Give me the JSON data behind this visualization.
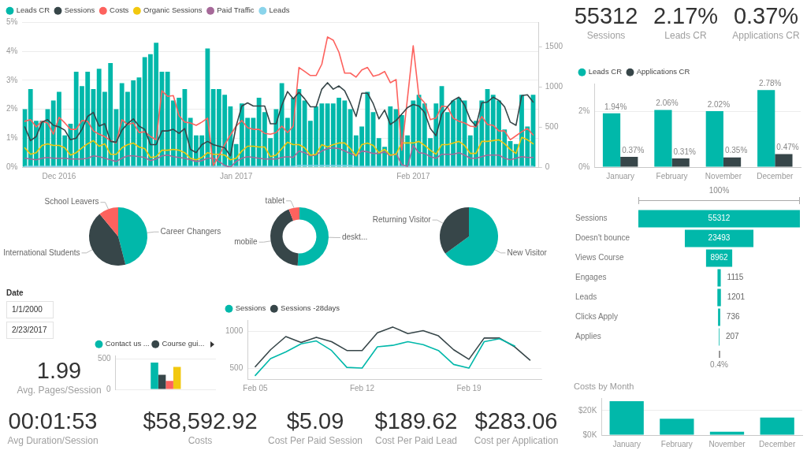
{
  "chart_data": [
    {
      "type": "bar",
      "x": [
        "2016-11-25",
        "2016-11-26",
        "2016-11-27",
        "2016-11-28",
        "2016-11-29",
        "2016-11-30",
        "2016-12-01",
        "2016-12-02",
        "2016-12-03",
        "2016-12-04",
        "2016-12-05",
        "2016-12-06",
        "2016-12-07",
        "2016-12-08",
        "2016-12-09",
        "2016-12-10",
        "2016-12-11",
        "2016-12-12",
        "2016-12-13",
        "2016-12-14",
        "2016-12-15",
        "2016-12-16",
        "2016-12-17",
        "2016-12-18",
        "2016-12-19",
        "2016-12-20",
        "2016-12-21",
        "2016-12-22",
        "2016-12-23",
        "2016-12-24",
        "2016-12-25",
        "2016-12-26",
        "2016-12-27",
        "2016-12-28",
        "2016-12-29",
        "2016-12-30",
        "2016-12-31",
        "2017-01-01",
        "2017-01-02",
        "2017-01-03",
        "2017-01-04",
        "2017-01-05",
        "2017-01-06",
        "2017-01-07",
        "2017-01-08",
        "2017-01-09",
        "2017-01-10",
        "2017-01-11",
        "2017-01-12",
        "2017-01-13",
        "2017-01-14",
        "2017-01-15",
        "2017-01-16",
        "2017-01-17",
        "2017-01-18",
        "2017-01-19",
        "2017-01-20",
        "2017-01-21",
        "2017-01-22",
        "2017-01-23",
        "2017-01-24",
        "2017-01-25",
        "2017-01-26",
        "2017-01-27",
        "2017-01-28",
        "2017-01-29",
        "2017-01-30",
        "2017-01-31",
        "2017-02-01",
        "2017-02-02",
        "2017-02-03",
        "2017-02-04",
        "2017-02-05",
        "2017-02-06",
        "2017-02-07",
        "2017-02-08",
        "2017-02-09",
        "2017-02-10",
        "2017-02-11",
        "2017-02-12",
        "2017-02-13",
        "2017-02-14",
        "2017-02-15",
        "2017-02-16",
        "2017-02-17",
        "2017-02-18",
        "2017-02-19",
        "2017-02-20",
        "2017-02-21",
        "2017-02-22"
      ],
      "xlim": [
        "2016-11-24T14:00",
        "2017-02-23"
      ],
      "xticks": [
        {
          "value": "2016-12-01",
          "label": "Dec 2016"
        },
        {
          "value": "2017-01-01",
          "label": "Jan 2017"
        },
        {
          "value": "2017-02-01",
          "label": "Feb 2017"
        }
      ],
      "series": [
        {
          "name": "Leads CR",
          "color": "#01b8aa",
          "values": [
            2.0,
            2.7,
            1.6,
            1.6,
            2.0,
            2.3,
            2.6,
            1.1,
            1.5,
            3.3,
            2.8,
            3.3,
            2.7,
            3.4,
            2.6,
            3.6,
            2.0,
            2.9,
            2.6,
            3.0,
            3.1,
            3.8,
            3.9,
            4.3,
            3.3,
            3.3,
            2.3,
            2.4,
            2.7,
            1.7,
            1.1,
            1.1,
            4.1,
            2.7,
            2.7,
            2.5,
            2.1,
            0.8,
            2.2,
            1.7,
            1.7,
            2.4,
            1.9,
            1.0,
            2.0,
            2.9,
            1.7,
            2.4,
            2.7,
            2.3,
            1.6,
            2.1,
            2.2,
            2.2,
            2.2,
            2.4,
            2.3,
            2.0,
            1.1,
            1.4,
            2.6,
            1.9,
            1.0,
            0.7,
            2.1,
            2.0,
            1.8,
            1.1,
            2.3,
            2.5,
            2.2,
            1.0,
            2.2,
            2.8,
            1.9,
            2.3,
            2.4,
            2.3,
            1.1,
            1.6,
            2.3,
            2.7,
            2.5,
            2.3,
            1.3,
            0.9,
            0.8,
            2.5,
            1.4,
            2.5
          ]
        },
        {
          "name": "Sessions",
          "type": "line",
          "axis": "y2",
          "color": "#374649",
          "values": [
            500,
            330,
            380,
            560,
            590,
            520,
            500,
            460,
            340,
            360,
            470,
            630,
            680,
            510,
            540,
            320,
            310,
            460,
            540,
            600,
            510,
            470,
            280,
            280,
            450,
            450,
            470,
            420,
            480,
            220,
            180,
            280,
            320,
            280,
            260,
            240,
            140,
            510,
            760,
            800,
            760,
            760,
            760,
            540,
            540,
            770,
            940,
            850,
            930,
            850,
            750,
            750,
            970,
            1050,
            970,
            1010,
            950,
            800,
            630,
            920,
            920,
            790,
            600,
            710,
            530,
            580,
            660,
            740,
            780,
            760,
            680,
            480,
            390,
            660,
            750,
            830,
            870,
            770,
            590,
            510,
            800,
            810,
            870,
            830,
            750,
            560,
            520,
            890,
            900,
            810
          ]
        },
        {
          "name": "Costs",
          "type": "line",
          "axis": "y2",
          "color": "#fd625e",
          "values": [
            570,
            590,
            500,
            570,
            550,
            410,
            620,
            550,
            470,
            470,
            580,
            570,
            450,
            410,
            380,
            330,
            300,
            590,
            530,
            550,
            430,
            440,
            380,
            340,
            950,
            880,
            890,
            640,
            560,
            550,
            520,
            560,
            610,
            20,
            140,
            280,
            400,
            510,
            580,
            490,
            470,
            470,
            420,
            410,
            430,
            510,
            430,
            510,
            1240,
            1190,
            1140,
            1140,
            1280,
            1620,
            1580,
            1430,
            1170,
            1170,
            1120,
            1210,
            1240,
            1130,
            1150,
            1190,
            1050,
            1090,
            210,
            860,
            1510,
            880,
            800,
            590,
            610,
            760,
            750,
            610,
            570,
            550,
            510,
            500,
            630,
            530,
            520,
            450,
            450,
            340,
            390,
            440,
            480,
            400
          ]
        },
        {
          "name": "Organic Sessions",
          "type": "line",
          "axis": "y2",
          "color": "#f2c80f",
          "values": [
            240,
            160,
            180,
            270,
            290,
            270,
            270,
            240,
            150,
            180,
            240,
            290,
            330,
            260,
            290,
            160,
            160,
            240,
            280,
            300,
            250,
            230,
            120,
            130,
            210,
            210,
            220,
            210,
            180,
            110,
            90,
            120,
            180,
            160,
            160,
            150,
            90,
            110,
            200,
            260,
            260,
            250,
            250,
            130,
            150,
            230,
            310,
            280,
            280,
            240,
            150,
            160,
            280,
            250,
            280,
            300,
            300,
            230,
            140,
            280,
            300,
            270,
            180,
            220,
            150,
            160,
            300,
            300,
            300,
            320,
            270,
            210,
            160,
            280,
            280,
            300,
            320,
            270,
            170,
            170,
            320,
            320,
            330,
            340,
            290,
            220,
            170,
            370,
            340,
            290
          ]
        },
        {
          "name": "Paid Traffic",
          "type": "line",
          "axis": "y2",
          "color": "#a66999",
          "values": [
            110,
            100,
            90,
            110,
            120,
            110,
            110,
            110,
            100,
            100,
            100,
            110,
            140,
            130,
            110,
            90,
            70,
            110,
            140,
            140,
            130,
            120,
            80,
            100,
            140,
            150,
            130,
            120,
            110,
            90,
            70,
            80,
            110,
            110,
            70,
            20,
            0,
            70,
            110,
            130,
            120,
            110,
            100,
            100,
            100,
            120,
            130,
            120,
            200,
            180,
            140,
            150,
            200,
            230,
            240,
            230,
            200,
            170,
            140,
            200,
            190,
            170,
            170,
            190,
            140,
            170,
            30,
            10,
            270,
            180,
            170,
            130,
            110,
            160,
            160,
            160,
            180,
            150,
            110,
            110,
            130,
            150,
            150,
            150,
            110,
            90,
            110,
            130,
            120,
            120
          ]
        },
        {
          "name": "Leads",
          "type": "line",
          "axis": "y2",
          "color": "#8ad4eb",
          "values": [
            10,
            10,
            10,
            10,
            10,
            10,
            10,
            10,
            10,
            10,
            10,
            10,
            10,
            10,
            10,
            10,
            10,
            10,
            10,
            10,
            10,
            10,
            10,
            10,
            10,
            10,
            10,
            10,
            10,
            10,
            10,
            10,
            10,
            10,
            10,
            10,
            10,
            10,
            10,
            10,
            10,
            10,
            10,
            10,
            10,
            10,
            10,
            10,
            20,
            20,
            20,
            20,
            20,
            20,
            20,
            20,
            20,
            20,
            10,
            10,
            10,
            10,
            10,
            10,
            10,
            10,
            10,
            10,
            10,
            10,
            10,
            10,
            10,
            10,
            10,
            10,
            10,
            10,
            10,
            10,
            10,
            10,
            10,
            10,
            10,
            10,
            10,
            10,
            10,
            10
          ]
        }
      ],
      "ylim": [
        0,
        5
      ],
      "yticks": [
        {
          "value": 0,
          "label": "0%"
        },
        {
          "value": 1,
          "label": "1%"
        },
        {
          "value": 2,
          "label": "2%"
        },
        {
          "value": 3,
          "label": "3%"
        },
        {
          "value": 4,
          "label": "4%"
        },
        {
          "value": 5,
          "label": "5%"
        }
      ],
      "y2lim": [
        0,
        1800
      ],
      "y2ticks": [
        0,
        500,
        1000,
        1500
      ],
      "grid": "y",
      "legend": "top left",
      "marker": "none"
    },
    {
      "type": "other",
      "annotations": [
        "55312",
        "Sessions",
        "2.17%",
        "Leads CR",
        "0.37%",
        "Applications CR"
      ]
    },
    {
      "type": "bar",
      "categories": [
        "January",
        "February",
        "November",
        "December"
      ],
      "series": [
        {
          "name": "Leads CR",
          "color": "#01b8aa",
          "values": [
            1.94,
            2.06,
            2.02,
            2.78
          ],
          "value_labels": [
            "1.94%",
            "2.06%",
            "2.02%",
            "2.78%"
          ]
        },
        {
          "name": "Applications CR",
          "color": "#374649",
          "values": [
            0.37,
            0.31,
            0.35,
            0.47
          ],
          "value_labels": [
            "0.37%",
            "0.31%",
            "0.35%",
            "0.47%"
          ]
        }
      ],
      "ylim": [
        0,
        3
      ],
      "yticks": [
        {
          "value": 0,
          "label": "0%"
        },
        {
          "value": 2,
          "label": "2%"
        }
      ],
      "grid": "y",
      "legend": "top left"
    },
    {
      "type": "pie",
      "categories": [
        "Career Changers",
        "International Students",
        "School Leavers"
      ],
      "values": [
        46,
        43,
        11
      ],
      "colors": [
        "#01b8aa",
        "#374649",
        "#fd625e"
      ]
    },
    {
      "type": "donut",
      "categories": [
        "deskt...",
        "mobile",
        "tablet"
      ],
      "values": [
        51,
        43,
        6
      ],
      "colors": [
        "#01b8aa",
        "#374649",
        "#fd625e"
      ]
    },
    {
      "type": "pie",
      "categories": [
        "New Visitor",
        "Returning Visitor"
      ],
      "values": [
        65,
        35
      ],
      "colors": [
        "#01b8aa",
        "#374649"
      ]
    },
    {
      "type": "other",
      "categories": [
        "Sessions",
        "Doesn't bounce",
        "Views Course",
        "Engages",
        "Leads",
        "Clicks Apply",
        "Applies"
      ],
      "values": [
        55312,
        23493,
        8962,
        1115,
        1201,
        736,
        207
      ],
      "color": "#01b8aa",
      "data_labels": true,
      "annotations": [
        "100%",
        "0.4%"
      ]
    },
    {
      "type": "other",
      "title": "Date",
      "annotations": [
        "1/1/2000",
        "2/23/2017"
      ]
    },
    {
      "type": "bar",
      "categories": [
        null
      ],
      "series": [
        {
          "name": "Contact us ...",
          "color": "#01b8aa",
          "values": [
            440
          ]
        },
        {
          "name": "Course gui...",
          "color": "#374649",
          "values": [
            240
          ]
        },
        {
          "color": "#fd625e",
          "values": [
            140
          ]
        },
        {
          "color": "#f2c80f",
          "values": [
            370
          ]
        }
      ],
      "ylim": [
        0,
        550
      ],
      "yticks": [
        0,
        500
      ],
      "grid": "y",
      "legend": "top left"
    },
    {
      "type": "line",
      "x": [
        "2017-02-05",
        "2017-02-06",
        "2017-02-07",
        "2017-02-08",
        "2017-02-09",
        "2017-02-10",
        "2017-02-11",
        "2017-02-12",
        "2017-02-13",
        "2017-02-14",
        "2017-02-15",
        "2017-02-16",
        "2017-02-17",
        "2017-02-18",
        "2017-02-19",
        "2017-02-20",
        "2017-02-21",
        "2017-02-22",
        "2017-02-23"
      ],
      "xlim": [
        "2017-02-04T12:00",
        "2017-02-23T18:00"
      ],
      "xticks": [
        {
          "value": "2017-02-05",
          "label": "Feb 05"
        },
        {
          "value": "2017-02-12",
          "label": "Feb 12"
        },
        {
          "value": "2017-02-19",
          "label": "Feb 19"
        }
      ],
      "series": [
        {
          "name": "Sessions",
          "color": "#01b8aa",
          "values": [
            400,
            630,
            720,
            830,
            870,
            740,
            510,
            500,
            790,
            810,
            860,
            820,
            740,
            550,
            500,
            860,
            900,
            800,
            null
          ]
        },
        {
          "name": "Sessions -28days",
          "color": "#374649",
          "values": [
            520,
            750,
            930,
            850,
            920,
            860,
            740,
            740,
            980,
            1060,
            970,
            1010,
            940,
            750,
            620,
            910,
            910,
            790,
            610
          ]
        }
      ],
      "ylim": [
        350,
        1150
      ],
      "yticks": [
        500,
        1000
      ],
      "grid": "y",
      "legend": "top left",
      "marker": "none"
    },
    {
      "type": "other",
      "annotations": [
        "1.99",
        "Avg. Pages/Session"
      ]
    },
    {
      "type": "other",
      "annotations": [
        "00:01:53",
        "Avg Duration/Session",
        "$58,592.92",
        "Costs",
        "$5.09",
        "Cost Per Paid Session",
        "$189.62",
        "Cost Per Paid Lead",
        "$283.06",
        "Cost per Application"
      ]
    },
    {
      "type": "bar",
      "title": "Costs by Month",
      "categories": [
        "January",
        "February",
        "November",
        "December"
      ],
      "values": [
        27600,
        13300,
        2700,
        14300
      ],
      "color": "#01b8aa",
      "ylim": [
        0,
        30000
      ],
      "yticks": [
        {
          "value": 0,
          "label": "$0K"
        },
        {
          "value": 20000,
          "label": "$20K"
        }
      ],
      "grid": "y"
    }
  ]
}
